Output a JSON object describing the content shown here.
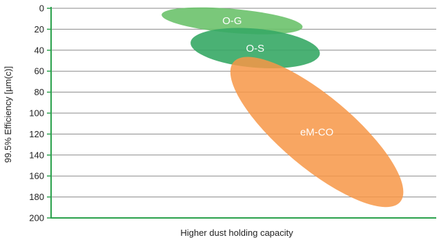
{
  "chart_data": {
    "type": "scatter",
    "title": "",
    "xlabel": "Higher dust holding capacity",
    "ylabel": "99.5% Efficiency [µm(c)]",
    "ylim": [
      0,
      200
    ],
    "y_axis_inverted": true,
    "yticks": [
      0,
      20,
      40,
      60,
      80,
      100,
      120,
      140,
      160,
      180,
      200
    ],
    "x_axis_ticks_labeled": false,
    "grid": "horizontal",
    "legend": "none",
    "colors": {
      "axis": "#2aa14c",
      "grid": "#8a8a8a",
      "O-G": "#6cc26b",
      "O-S": "#36a865",
      "eM-CO": "#f79646"
    },
    "regions": [
      {
        "name": "O-G",
        "shape": "ellipse",
        "x_relative_center": 0.47,
        "y_center": 12,
        "x_relative_extent": [
          0.27,
          0.66
        ],
        "y_extent": [
          0,
          24
        ],
        "opacity": 0.9
      },
      {
        "name": "O-S",
        "shape": "ellipse",
        "x_relative_center": 0.53,
        "y_center": 38,
        "x_relative_extent": [
          0.36,
          0.7
        ],
        "y_extent": [
          20,
          58
        ],
        "opacity": 0.9
      },
      {
        "name": "eM-CO",
        "shape": "ellipse",
        "x_relative_center": 0.69,
        "y_center": 118,
        "x_relative_extent": [
          0.46,
          0.91
        ],
        "y_extent": [
          47,
          190
        ],
        "opacity": 0.85
      }
    ]
  }
}
